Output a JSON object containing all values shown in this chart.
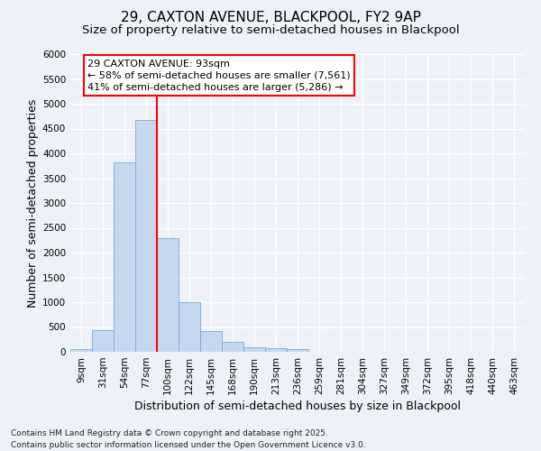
{
  "title": "29, CAXTON AVENUE, BLACKPOOL, FY2 9AP",
  "subtitle": "Size of property relative to semi-detached houses in Blackpool",
  "xlabel": "Distribution of semi-detached houses by size in Blackpool",
  "ylabel": "Number of semi-detached properties",
  "categories": [
    "9sqm",
    "31sqm",
    "54sqm",
    "77sqm",
    "100sqm",
    "122sqm",
    "145sqm",
    "168sqm",
    "190sqm",
    "213sqm",
    "236sqm",
    "259sqm",
    "281sqm",
    "304sqm",
    "327sqm",
    "349sqm",
    "372sqm",
    "395sqm",
    "418sqm",
    "440sqm",
    "463sqm"
  ],
  "values": [
    50,
    430,
    3820,
    4680,
    2300,
    1000,
    410,
    200,
    100,
    70,
    60,
    0,
    0,
    0,
    0,
    0,
    0,
    0,
    0,
    0,
    0
  ],
  "bar_color": "#c5d8f0",
  "bar_edge_color": "#7baad4",
  "bar_width": 1.0,
  "vline_color": "red",
  "vline_x_index": 4,
  "ylim": [
    0,
    6000
  ],
  "yticks": [
    0,
    500,
    1000,
    1500,
    2000,
    2500,
    3000,
    3500,
    4000,
    4500,
    5000,
    5500,
    6000
  ],
  "annotation_title": "29 CAXTON AVENUE: 93sqm",
  "annotation_line1": "← 58% of semi-detached houses are smaller (7,561)",
  "annotation_line2": "41% of semi-detached houses are larger (5,286) →",
  "footer_line1": "Contains HM Land Registry data © Crown copyright and database right 2025.",
  "footer_line2": "Contains public sector information licensed under the Open Government Licence v3.0.",
  "background_color": "#eef2f8",
  "grid_color": "#ffffff",
  "title_fontsize": 11,
  "subtitle_fontsize": 9.5,
  "axis_label_fontsize": 9,
  "tick_fontsize": 7.5,
  "annotation_fontsize": 8,
  "footer_fontsize": 6.5
}
